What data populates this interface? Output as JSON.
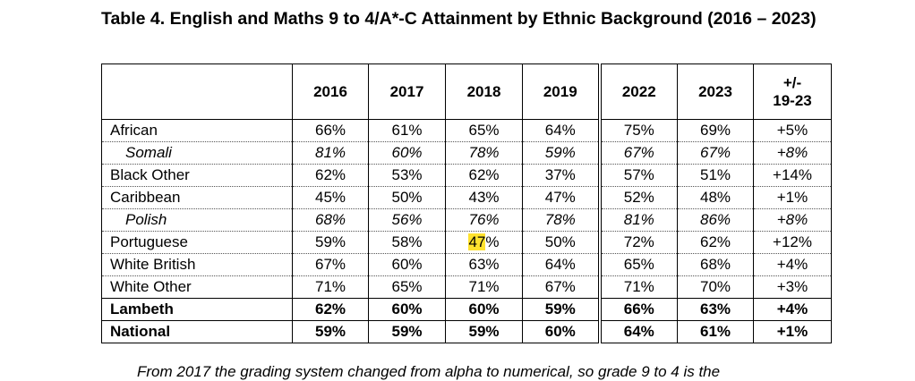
{
  "title": "Table 4. English and Maths 9 to 4/A*-C Attainment by Ethnic Background (2016 – 2023)",
  "headers": {
    "ethnicity": "",
    "y2016": "2016",
    "y2017": "2017",
    "y2018": "2018",
    "y2019": "2019",
    "y2022": "2022",
    "y2023": "2023",
    "change_line1": "+/-",
    "change_line2": "19-23"
  },
  "rows": [
    {
      "name": "African",
      "v2016": "66%",
      "v2017": "61%",
      "v2018": "65%",
      "v2019": "64%",
      "v2022": "75%",
      "v2023": "69%",
      "change": "+5%"
    },
    {
      "name": "Somali",
      "v2016": "81%",
      "v2017": "60%",
      "v2018": "78%",
      "v2019": "59%",
      "v2022": "67%",
      "v2023": "67%",
      "change": "+8%"
    },
    {
      "name": "Black Other",
      "v2016": "62%",
      "v2017": "53%",
      "v2018": "62%",
      "v2019": "37%",
      "v2022": "57%",
      "v2023": "51%",
      "change": "+14%"
    },
    {
      "name": "Caribbean",
      "v2016": "45%",
      "v2017": "50%",
      "v2018": "43%",
      "v2019": "47%",
      "v2022": "52%",
      "v2023": "48%",
      "change": "+1%"
    },
    {
      "name": "Polish",
      "v2016": "68%",
      "v2017": "56%",
      "v2018": "76%",
      "v2019": "78%",
      "v2022": "81%",
      "v2023": "86%",
      "change": "+8%"
    },
    {
      "name": "Portuguese",
      "v2016": "59%",
      "v2017": "58%",
      "v2018_num": "47",
      "v2018_pct": "%",
      "v2019": "50%",
      "v2022": "72%",
      "v2023": "62%",
      "change": "+12%"
    },
    {
      "name": "White British",
      "v2016": "67%",
      "v2017": "60%",
      "v2018": "63%",
      "v2019": "64%",
      "v2022": "65%",
      "v2023": "68%",
      "change": "+4%"
    },
    {
      "name": "White Other",
      "v2016": "71%",
      "v2017": "65%",
      "v2018": "71%",
      "v2019": "67%",
      "v2022": "71%",
      "v2023": "70%",
      "change": "+3%"
    },
    {
      "name": "Lambeth",
      "v2016": "62%",
      "v2017": "60%",
      "v2018": "60%",
      "v2019": "59%",
      "v2022": "66%",
      "v2023": "63%",
      "change": "+4%"
    },
    {
      "name": "National",
      "v2016": "59%",
      "v2017": "59%",
      "v2018": "59%",
      "v2019": "60%",
      "v2022": "64%",
      "v2023": "61%",
      "change": "+1%"
    }
  ],
  "highlight_color": "#ffe22e",
  "footnote": "From 2017 the grading system changed from alpha to numerical, so grade 9 to 4 is the"
}
